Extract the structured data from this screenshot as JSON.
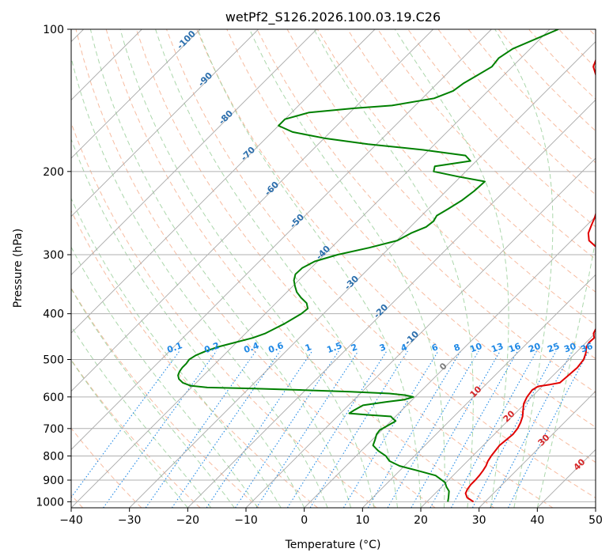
{
  "chart_data": {
    "type": "skew-t",
    "title": "wetPf2_S126.2026.100.03.19.C26",
    "xlabel": "Temperature (°C)",
    "ylabel": "Pressure (hPa)",
    "xlim": [
      -40,
      50
    ],
    "ylim": [
      1030,
      100
    ],
    "x_ticks": [
      -40,
      -30,
      -20,
      -10,
      0,
      10,
      20,
      30,
      40,
      50
    ],
    "x_tick_labels": [
      "−40",
      "−30",
      "−20",
      "−10",
      "0",
      "10",
      "20",
      "30",
      "40",
      "50"
    ],
    "y_ticks": [
      100,
      200,
      300,
      400,
      500,
      600,
      700,
      800,
      900,
      1000
    ],
    "y_tick_labels": [
      "100",
      "200",
      "300",
      "400",
      "500",
      "600",
      "700",
      "800",
      "900",
      "1000"
    ],
    "colors": {
      "temperature": "#e00000",
      "dewpoint": "#008000",
      "isotherm": "#a8a8a8",
      "dry_adiabat": "#f4a582",
      "moist_adiabat": "#8fc98f",
      "mixing_ratio": "#1e88e5",
      "isotherm_label": "#2c6fad",
      "dry_label": "#d62728",
      "zero_label": "#7f7f7f"
    },
    "series": [
      {
        "name": "Temperature",
        "points": [
          [
            28.0,
            1000
          ],
          [
            26.2,
            980
          ],
          [
            25.2,
            960
          ],
          [
            24.8,
            940
          ],
          [
            24.6,
            920
          ],
          [
            24.6,
            900
          ],
          [
            24.5,
            880
          ],
          [
            24.3,
            860
          ],
          [
            24.0,
            840
          ],
          [
            23.5,
            820
          ],
          [
            23.2,
            800
          ],
          [
            23.0,
            780
          ],
          [
            22.8,
            760
          ],
          [
            23.0,
            740
          ],
          [
            23.2,
            720
          ],
          [
            23.0,
            700
          ],
          [
            22.5,
            680
          ],
          [
            21.8,
            660
          ],
          [
            20.8,
            640
          ],
          [
            19.8,
            620
          ],
          [
            19.2,
            600
          ],
          [
            18.9,
            580
          ],
          [
            19.3,
            570
          ],
          [
            21.0,
            565
          ],
          [
            22.4,
            560
          ],
          [
            22.6,
            540
          ],
          [
            22.8,
            520
          ],
          [
            22.5,
            500
          ],
          [
            21.8,
            485
          ],
          [
            20.8,
            470
          ],
          [
            20.5,
            460
          ],
          [
            20.6,
            450
          ],
          [
            19.7,
            440
          ],
          [
            19.3,
            430
          ],
          [
            19.0,
            420
          ],
          [
            18.6,
            410
          ],
          [
            18.2,
            400
          ],
          [
            18.0,
            390
          ],
          [
            17.8,
            380
          ],
          [
            17.4,
            370
          ],
          [
            16.9,
            360
          ],
          [
            16.6,
            350
          ],
          [
            16.2,
            340
          ],
          [
            15.5,
            330
          ],
          [
            13.6,
            320
          ],
          [
            11.2,
            310
          ],
          [
            8.5,
            300
          ],
          [
            5.6,
            290
          ],
          [
            3.0,
            280
          ],
          [
            1.6,
            270
          ],
          [
            0.8,
            260
          ],
          [
            0.0,
            250
          ],
          [
            -1.0,
            240
          ],
          [
            -2.0,
            230
          ],
          [
            -3.1,
            220
          ],
          [
            -4.4,
            210
          ],
          [
            -5.8,
            200
          ],
          [
            -7.0,
            190
          ],
          [
            -8.1,
            180
          ],
          [
            -9.6,
            170
          ],
          [
            -11.5,
            160
          ],
          [
            -14.4,
            150
          ],
          [
            -18.8,
            140
          ],
          [
            -22.4,
            130
          ],
          [
            -26.1,
            120
          ],
          [
            -28.0,
            110
          ],
          [
            -30.0,
            100
          ]
        ]
      },
      {
        "name": "Dewpoint",
        "points": [
          [
            23.6,
            1000
          ],
          [
            23.0,
            980
          ],
          [
            22.0,
            950
          ],
          [
            20.8,
            930
          ],
          [
            19.8,
            910
          ],
          [
            17.0,
            880
          ],
          [
            13.2,
            860
          ],
          [
            9.2,
            840
          ],
          [
            6.6,
            820
          ],
          [
            5.1,
            800
          ],
          [
            2.9,
            780
          ],
          [
            1.1,
            760
          ],
          [
            0.5,
            740
          ],
          [
            -0.2,
            720
          ],
          [
            -0.4,
            705
          ],
          [
            0.2,
            690
          ],
          [
            0.8,
            675
          ],
          [
            -0.3,
            665
          ],
          [
            -0.8,
            660
          ],
          [
            -4.8,
            655
          ],
          [
            -8.5,
            650
          ],
          [
            -8.2,
            640
          ],
          [
            -7.5,
            625
          ],
          [
            -4.2,
            615
          ],
          [
            -1.4,
            608
          ],
          [
            -0.3,
            600
          ],
          [
            -2.0,
            595
          ],
          [
            -5.0,
            590
          ],
          [
            -12.0,
            585
          ],
          [
            -21.0,
            580
          ],
          [
            -29.0,
            576
          ],
          [
            -37.3,
            573
          ],
          [
            -40.5,
            568
          ],
          [
            -42.3,
            560
          ],
          [
            -43.6,
            550
          ],
          [
            -44.4,
            540
          ],
          [
            -44.8,
            530
          ],
          [
            -45.0,
            520
          ],
          [
            -45.0,
            510
          ],
          [
            -45.2,
            500
          ],
          [
            -44.8,
            490
          ],
          [
            -43.8,
            480
          ],
          [
            -42.4,
            470
          ],
          [
            -40.2,
            460
          ],
          [
            -38.0,
            450
          ],
          [
            -36.6,
            440
          ],
          [
            -35.8,
            430
          ],
          [
            -35.0,
            420
          ],
          [
            -34.4,
            410
          ],
          [
            -33.8,
            400
          ],
          [
            -33.6,
            390
          ],
          [
            -34.7,
            380
          ],
          [
            -36.6,
            370
          ],
          [
            -38.3,
            360
          ],
          [
            -39.6,
            350
          ],
          [
            -40.8,
            340
          ],
          [
            -41.6,
            330
          ],
          [
            -41.5,
            320
          ],
          [
            -40.5,
            310
          ],
          [
            -37.7,
            300
          ],
          [
            -33.5,
            290
          ],
          [
            -29.9,
            280
          ],
          [
            -28.8,
            270
          ],
          [
            -27.3,
            262
          ],
          [
            -27.0,
            255
          ],
          [
            -27.4,
            248
          ],
          [
            -26.6,
            240
          ],
          [
            -25.7,
            230
          ],
          [
            -25.2,
            220
          ],
          [
            -25.0,
            210
          ],
          [
            -30.5,
            205
          ],
          [
            -35.5,
            200
          ],
          [
            -36.2,
            195
          ],
          [
            -31.0,
            190
          ],
          [
            -32.8,
            185
          ],
          [
            -41.0,
            180
          ],
          [
            -51.5,
            175
          ],
          [
            -60.0,
            170
          ],
          [
            -66.5,
            165
          ],
          [
            -70.0,
            160
          ],
          [
            -70.0,
            155
          ],
          [
            -67.0,
            150
          ],
          [
            -60.0,
            147
          ],
          [
            -54.0,
            145
          ],
          [
            -48.0,
            140
          ],
          [
            -46.0,
            135
          ],
          [
            -45.5,
            130
          ],
          [
            -44.5,
            125
          ],
          [
            -43.5,
            120
          ],
          [
            -43.8,
            115
          ],
          [
            -43.0,
            110
          ],
          [
            -38.5,
            100
          ]
        ]
      }
    ],
    "dry_adiabat_labels": [
      "0",
      "10",
      "20",
      "30",
      "40"
    ],
    "isotherm_labels": [
      "-100",
      "-90",
      "-80",
      "-70",
      "-60",
      "-50",
      "-40",
      "-30",
      "-20",
      "-10",
      "0"
    ],
    "mixing_ratio_labels": [
      "0.1",
      "0.2",
      "0.4",
      "0.6",
      "1",
      "1.5",
      "2",
      "3",
      "4",
      "6",
      "8",
      "10",
      "13",
      "16",
      "20",
      "25",
      "30",
      "36"
    ]
  }
}
